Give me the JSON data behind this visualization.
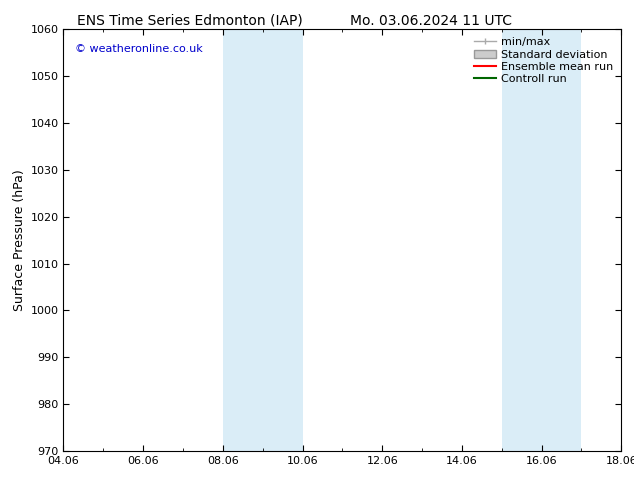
{
  "title_left": "ENS Time Series Edmonton (IAP)",
  "title_right": "Mo. 03.06.2024 11 UTC",
  "ylabel": "Surface Pressure (hPa)",
  "ylim": [
    970,
    1060
  ],
  "yticks": [
    970,
    980,
    990,
    1000,
    1010,
    1020,
    1030,
    1040,
    1050,
    1060
  ],
  "xtick_labels": [
    "04.06",
    "06.06",
    "08.06",
    "10.06",
    "12.06",
    "14.06",
    "16.06",
    "18.06"
  ],
  "xtick_positions": [
    0,
    2,
    4,
    6,
    8,
    10,
    12,
    14
  ],
  "xlim": [
    0,
    14
  ],
  "weekend_bands": [
    {
      "x_start": 4.0,
      "x_end": 6.0
    },
    {
      "x_start": 11.0,
      "x_end": 13.0
    }
  ],
  "band_color": "#daedf7",
  "watermark": "© weatheronline.co.uk",
  "watermark_color": "#0000cc",
  "bg_color": "#ffffff",
  "title_fontsize": 10,
  "axis_label_fontsize": 9,
  "tick_fontsize": 8,
  "legend_fontsize": 8,
  "legend_items": [
    {
      "label": "min/max",
      "type": "line",
      "color": "#aaaaaa",
      "lw": 1.0
    },
    {
      "label": "Standard deviation",
      "type": "patch",
      "facecolor": "#cccccc",
      "edgecolor": "#999999"
    },
    {
      "label": "Ensemble mean run",
      "type": "line",
      "color": "#ff0000",
      "lw": 1.5
    },
    {
      "label": "Controll run",
      "type": "line",
      "color": "#006600",
      "lw": 1.5
    }
  ]
}
